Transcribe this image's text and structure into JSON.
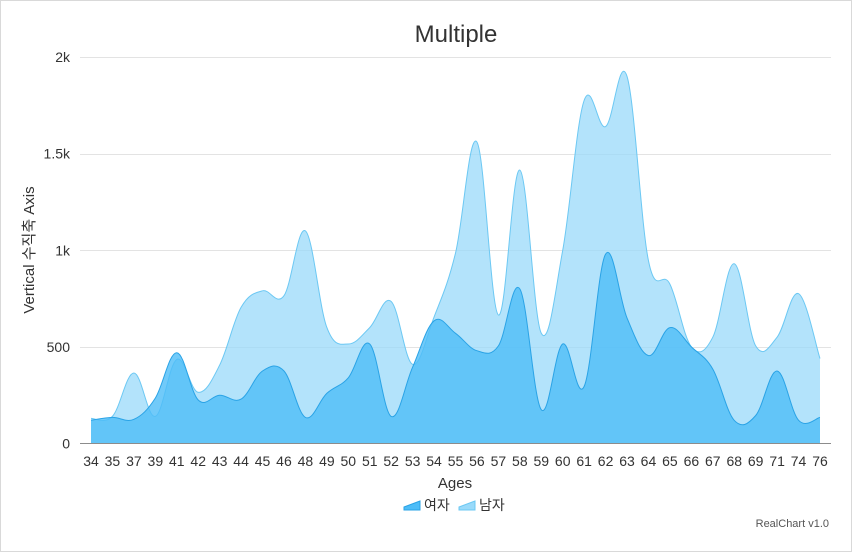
{
  "chart_data": {
    "type": "area",
    "title": "Multiple",
    "xlabel": "Ages",
    "ylabel": "Vertical 수직축 Axis",
    "categories": [
      "34",
      "35",
      "37",
      "39",
      "41",
      "42",
      "43",
      "44",
      "45",
      "46",
      "48",
      "49",
      "50",
      "51",
      "52",
      "53",
      "54",
      "55",
      "56",
      "57",
      "58",
      "59",
      "60",
      "61",
      "62",
      "63",
      "64",
      "65",
      "66",
      "67",
      "68",
      "69",
      "71",
      "74",
      "76"
    ],
    "ylim": [
      0,
      2000
    ],
    "yticks": [
      0,
      500,
      1000,
      1500,
      2000
    ],
    "ytick_labels": [
      "0",
      "500",
      "1k",
      "1.5k",
      "2k"
    ],
    "grid": true,
    "legend_position": "bottom",
    "series": [
      {
        "name": "여자",
        "color": "#4dbdf8",
        "values": [
          120,
          135,
          125,
          235,
          470,
          225,
          250,
          230,
          375,
          375,
          135,
          260,
          340,
          515,
          140,
          395,
          635,
          570,
          480,
          505,
          800,
          175,
          515,
          295,
          980,
          650,
          455,
          600,
          500,
          385,
          120,
          145,
          375,
          120,
          135
        ]
      },
      {
        "name": "남자",
        "color": "#99dafa",
        "values": [
          130,
          140,
          365,
          140,
          435,
          265,
          405,
          705,
          790,
          765,
          1100,
          600,
          515,
          600,
          735,
          410,
          655,
          985,
          1560,
          665,
          1415,
          570,
          1000,
          1775,
          1640,
          1900,
          945,
          825,
          500,
          550,
          930,
          505,
          550,
          775,
          440
        ]
      }
    ],
    "credit": "RealChart v1.0"
  }
}
